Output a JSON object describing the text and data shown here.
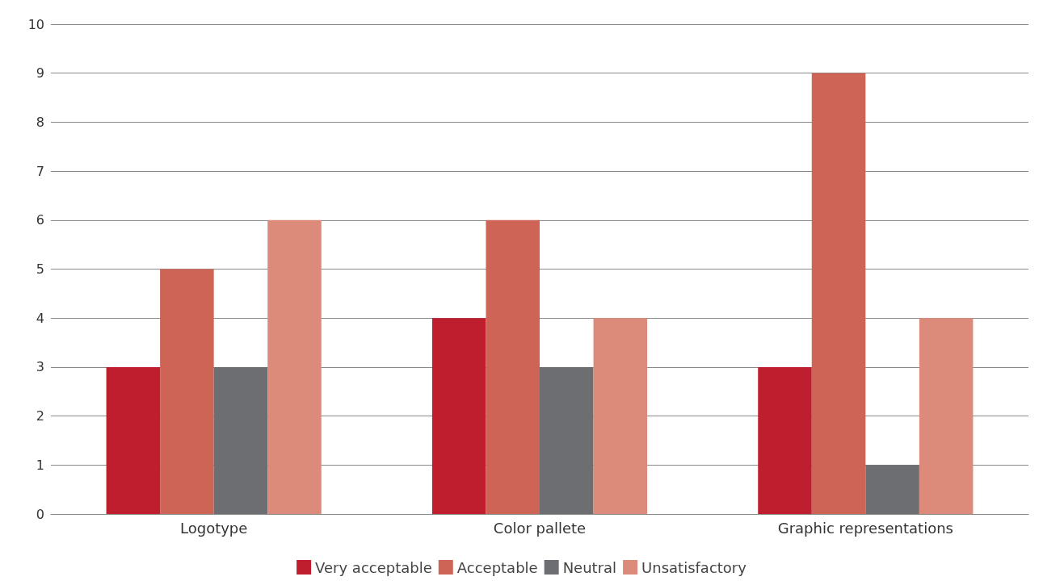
{
  "chart_data": {
    "type": "bar",
    "categories": [
      "Logotype",
      "Color pallete",
      "Graphic representations"
    ],
    "series": [
      {
        "name": "Very acceptable",
        "color": "#be1e2d",
        "values": [
          3,
          4,
          3
        ]
      },
      {
        "name": "Acceptable",
        "color": "#cd6455",
        "values": [
          5,
          6,
          9
        ]
      },
      {
        "name": "Neutral",
        "color": "#6d6e71",
        "values": [
          3,
          3,
          1
        ]
      },
      {
        "name": "Unsatisfactory",
        "color": "#dc8b7a",
        "values": [
          6,
          4,
          4
        ]
      }
    ],
    "ylim": [
      0,
      10
    ],
    "yticks": [
      0,
      1,
      2,
      3,
      4,
      5,
      6,
      7,
      8,
      9,
      10
    ],
    "grid": "y",
    "legend": "bottom"
  }
}
